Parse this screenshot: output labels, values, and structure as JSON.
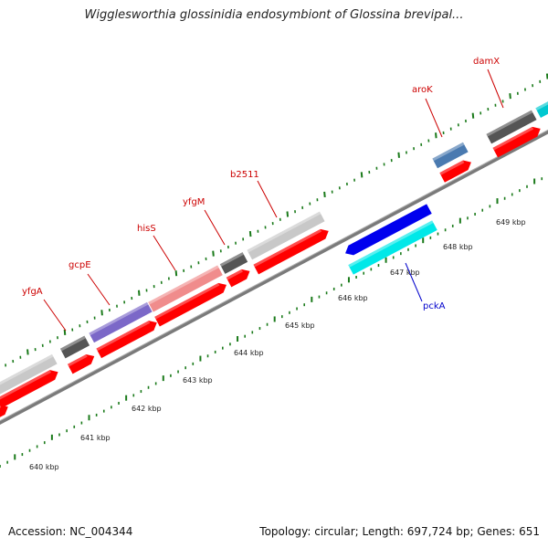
{
  "title": "Wigglesworthia glossinidia endosymbiont of Glossina brevipal...",
  "footer": {
    "accession": "Accession: NC_004344",
    "summary": "Topology: circular; Length: 697,724 bp; Genes: 651"
  },
  "colors": {
    "backbone": "#808080",
    "tick": "#1a7a1a",
    "cds_red": "#ff0000",
    "label_red": "#cc0000",
    "label_blue": "#0000cc",
    "gray_light": "#c8c8c8",
    "gray_dark": "#555555",
    "purple": "#7b68c8",
    "pink": "#f08c8c",
    "steel": "#4a7ab0",
    "blue": "#0000ee",
    "cyan": "#00e8e8",
    "teal": "#00c8d0"
  },
  "kbp_ticks": [
    {
      "label": "640 kbp"
    },
    {
      "label": "641 kbp"
    },
    {
      "label": "642 kbp"
    },
    {
      "label": "643 kbp"
    },
    {
      "label": "644 kbp"
    },
    {
      "label": "645 kbp"
    },
    {
      "label": "646 kbp"
    },
    {
      "label": "647 kbp"
    },
    {
      "label": "648 kbp"
    },
    {
      "label": "649 kbp"
    }
  ],
  "gene_labels": [
    {
      "name": "yfgA",
      "color": "#cc0000"
    },
    {
      "name": "gcpE",
      "color": "#cc0000"
    },
    {
      "name": "hisS",
      "color": "#cc0000"
    },
    {
      "name": "yfgM",
      "color": "#cc0000"
    },
    {
      "name": "b2511",
      "color": "#cc0000"
    },
    {
      "name": "aroK",
      "color": "#cc0000"
    },
    {
      "name": "damX",
      "color": "#cc0000"
    },
    {
      "name": "pckA",
      "color": "#0000cc"
    }
  ]
}
